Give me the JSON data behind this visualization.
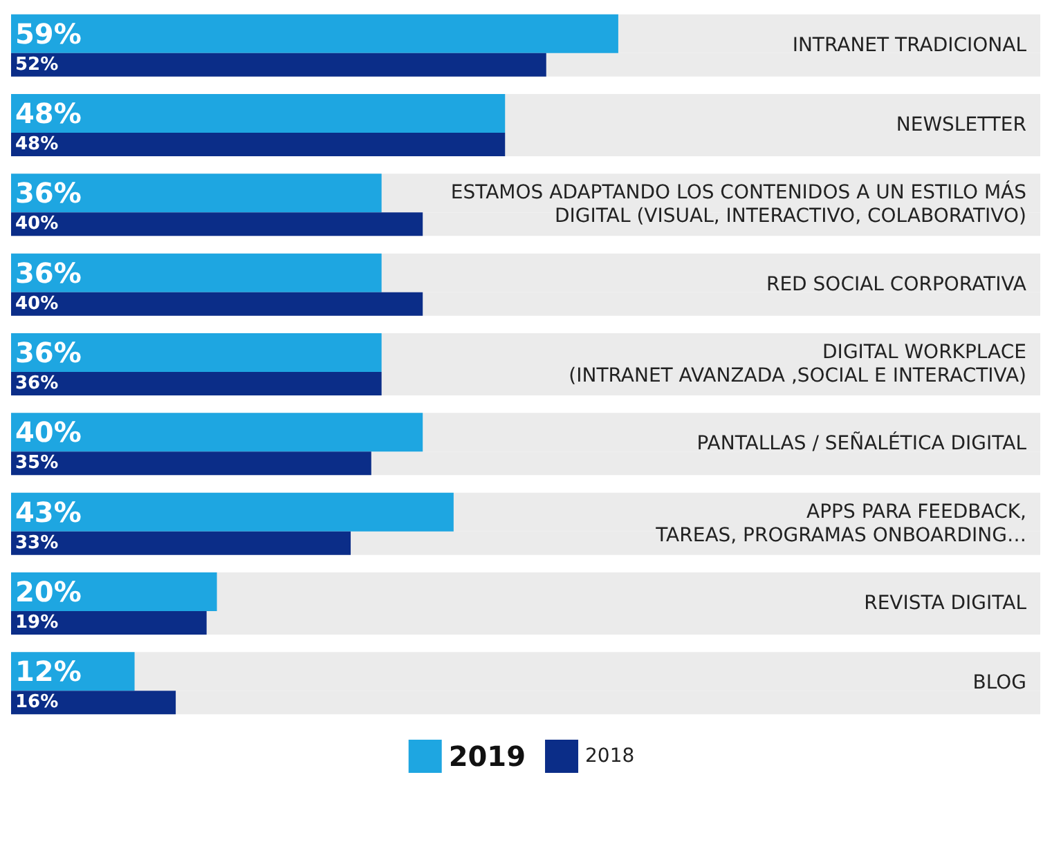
{
  "chart_data": {
    "type": "bar",
    "orientation": "horizontal",
    "categories": [
      "INTRANET TRADICIONAL",
      "NEWSLETTER",
      "ESTAMOS ADAPTANDO LOS CONTENIDOS A UN ESTILO MÁS\nDIGITAL (VISUAL, INTERACTIVO, COLABORATIVO)",
      "RED SOCIAL CORPORATIVA",
      "DIGITAL WORKPLACE\n(INTRANET AVANZADA ,SOCIAL E INTERACTIVA)",
      "PANTALLAS / SEÑALÉTICA DIGITAL",
      "APPS PARA FEEDBACK,\nTAREAS, PROGRAMAS ONBOARDING…",
      "REVISTA DIGITAL",
      "BLOG"
    ],
    "series": [
      {
        "name": "2019",
        "color": "#1ea6e1",
        "values": [
          59,
          48,
          36,
          36,
          36,
          40,
          43,
          20,
          12
        ],
        "value_labels": [
          "59%",
          "48%",
          "36%",
          "36%",
          "36%",
          "40%",
          "43%",
          "20%",
          "12%"
        ]
      },
      {
        "name": "2018",
        "color": "#0b2d88",
        "values": [
          52,
          48,
          40,
          40,
          36,
          35,
          33,
          19,
          16
        ],
        "value_labels": [
          "52%",
          "48%",
          "40%",
          "40%",
          "36%",
          "35%",
          "33%",
          "19%",
          "16%"
        ]
      }
    ],
    "xlim": [
      0,
      100
    ],
    "tick_labels": "y",
    "legend": "bottom"
  }
}
